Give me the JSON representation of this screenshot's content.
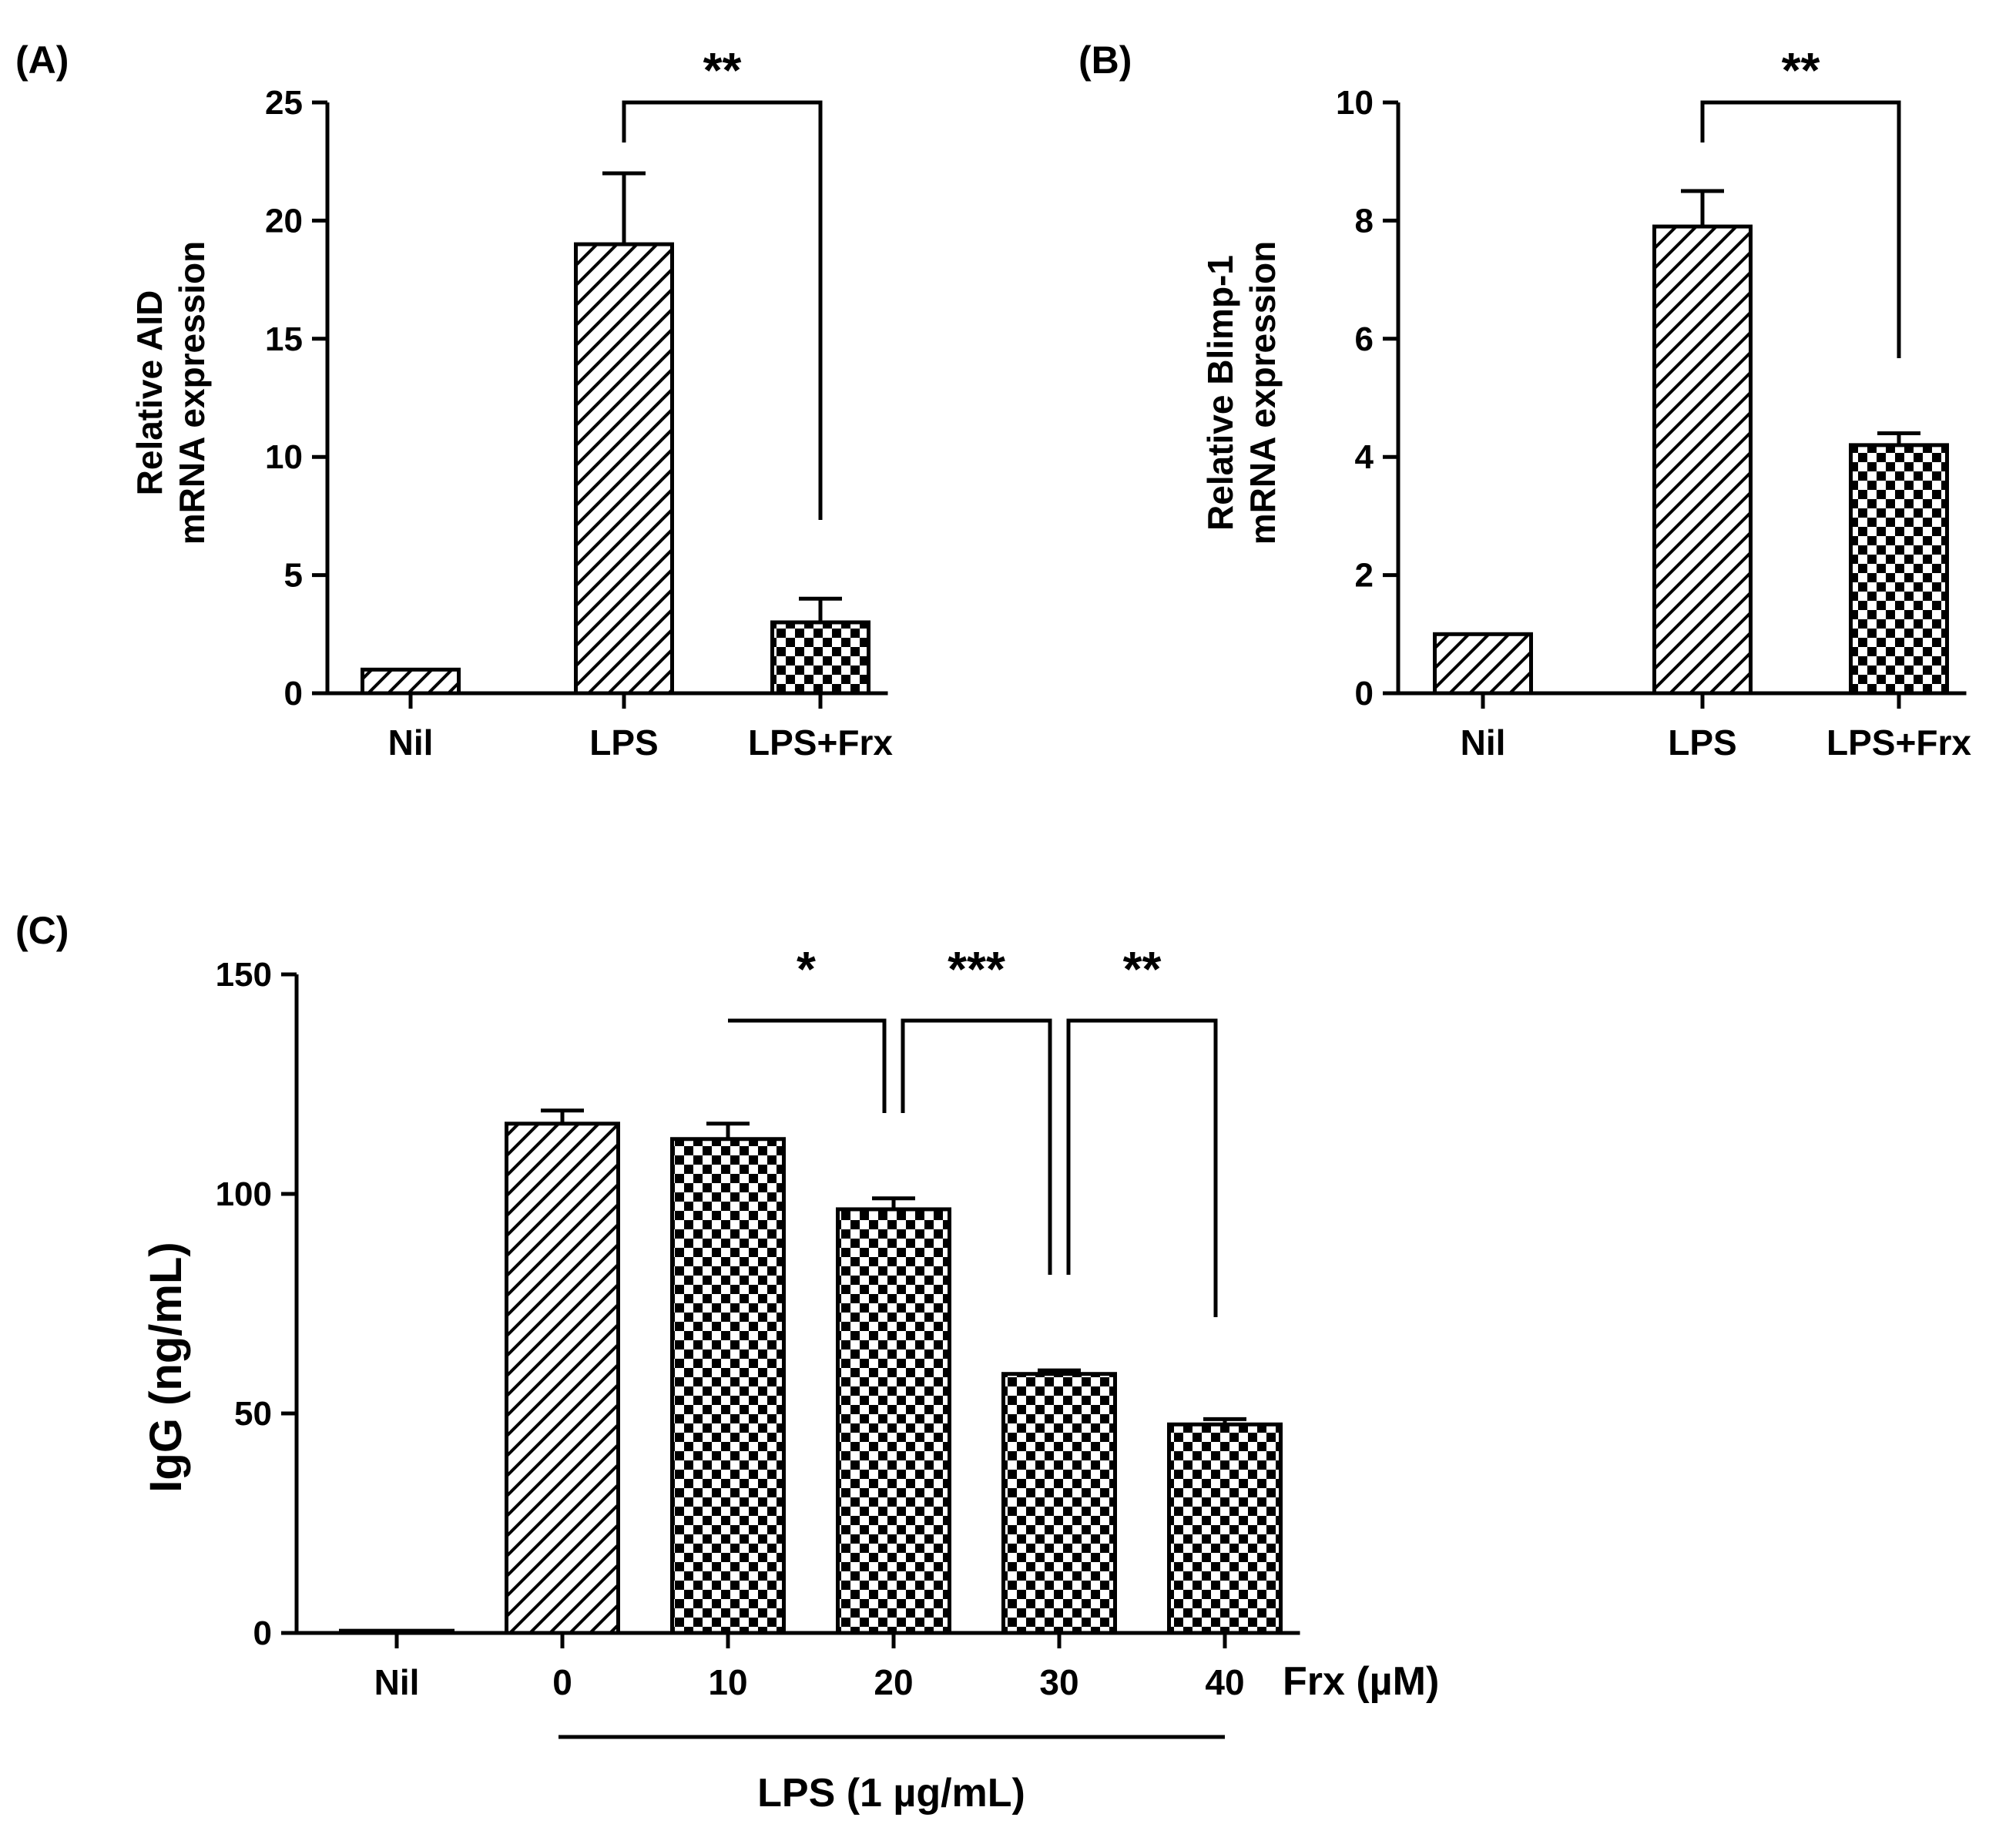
{
  "chart_data": [
    {
      "panel": "(A)",
      "type": "bar",
      "ylabel_lines": [
        "Relative AID",
        "mRNA expression"
      ],
      "ylim": [
        0,
        25
      ],
      "yticks": [
        0,
        5,
        10,
        15,
        20,
        25
      ],
      "categories": [
        "Nil",
        "LPS",
        "LPS+Frx"
      ],
      "values": [
        1,
        19,
        3
      ],
      "errors": [
        0,
        3,
        1
      ],
      "patterns": [
        "hatch",
        "hatch",
        "check"
      ],
      "brackets": [
        {
          "from": 1,
          "to": 2,
          "label": "**"
        }
      ]
    },
    {
      "panel": "(B)",
      "type": "bar",
      "ylabel_lines": [
        "Relative Blimp-1",
        "mRNA expression"
      ],
      "ylim": [
        0,
        10
      ],
      "yticks": [
        0,
        2,
        4,
        6,
        8,
        10
      ],
      "categories": [
        "Nil",
        "LPS",
        "LPS+Frx"
      ],
      "values": [
        1,
        7.9,
        4.2
      ],
      "errors": [
        0,
        0.6,
        0.2
      ],
      "patterns": [
        "hatch",
        "hatch",
        "check"
      ],
      "brackets": [
        {
          "from": 1,
          "to": 2,
          "label": "**"
        }
      ]
    },
    {
      "panel": "(C)",
      "type": "bar",
      "ylabel": "IgG (ng/mL)",
      "ylim": [
        0,
        150
      ],
      "yticks": [
        0,
        50,
        100,
        150
      ],
      "categories": [
        "Nil",
        "0",
        "10",
        "20",
        "30",
        "40"
      ],
      "xunit_label": "Frx (µM)",
      "group_label": "LPS (1 µg/mL)",
      "values": [
        0.5,
        116,
        112.5,
        96.5,
        59,
        47.5
      ],
      "errors": [
        0,
        3,
        3.5,
        2.5,
        0.8,
        1.2
      ],
      "patterns": [
        "plain",
        "hatch",
        "check",
        "check",
        "check",
        "check"
      ],
      "brackets": [
        {
          "from": 2,
          "to": 3,
          "label": "*"
        },
        {
          "from": 3,
          "to": 4,
          "label": "***"
        },
        {
          "from": 4,
          "to": 5,
          "label": "**"
        }
      ]
    }
  ]
}
